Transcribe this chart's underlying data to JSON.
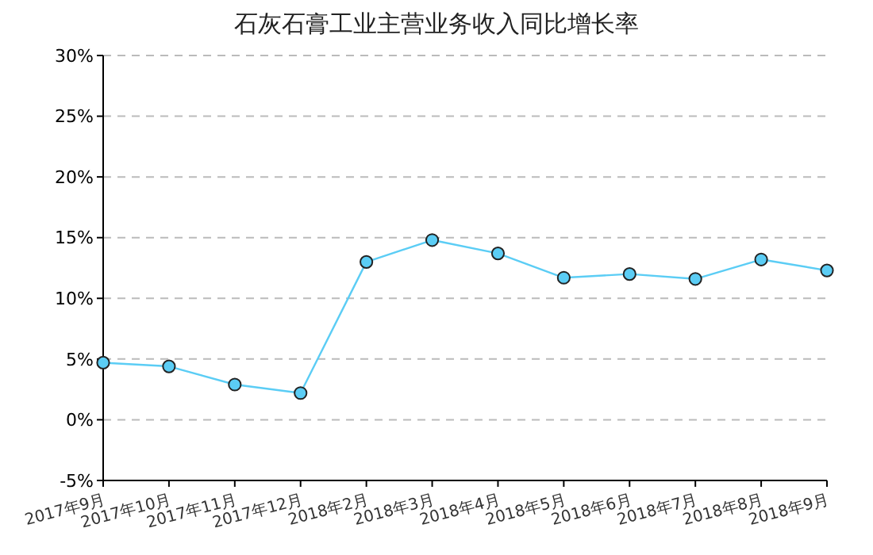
{
  "chart_data": {
    "type": "line",
    "title": "石灰石膏工业主营业务收入同比增长率",
    "categories": [
      "2017年9月",
      "2017年10月",
      "2017年11月",
      "2017年12月",
      "2018年2月",
      "2018年3月",
      "2018年4月",
      "2018年5月",
      "2018年6月",
      "2018年7月",
      "2018年8月",
      "2018年9月"
    ],
    "series": [
      {
        "color": "#5bcdf5",
        "values": [
          4.7,
          4.4,
          2.9,
          2.2,
          13.0,
          14.8,
          13.7,
          11.7,
          12.0,
          11.6,
          13.2,
          12.3
        ]
      }
    ],
    "ylim": [
      -5,
      30
    ],
    "yticks": [
      {
        "value": -5,
        "label": "-5%"
      },
      {
        "value": 0,
        "label": "0%"
      },
      {
        "value": 5,
        "label": "5%"
      },
      {
        "value": 10,
        "label": "10%"
      },
      {
        "value": 15,
        "label": "15%"
      },
      {
        "value": 20,
        "label": "20%"
      },
      {
        "value": 25,
        "label": "25%"
      },
      {
        "value": 30,
        "label": "30%"
      }
    ],
    "grid": "y",
    "marker": "circle",
    "line_style": "solid"
  }
}
